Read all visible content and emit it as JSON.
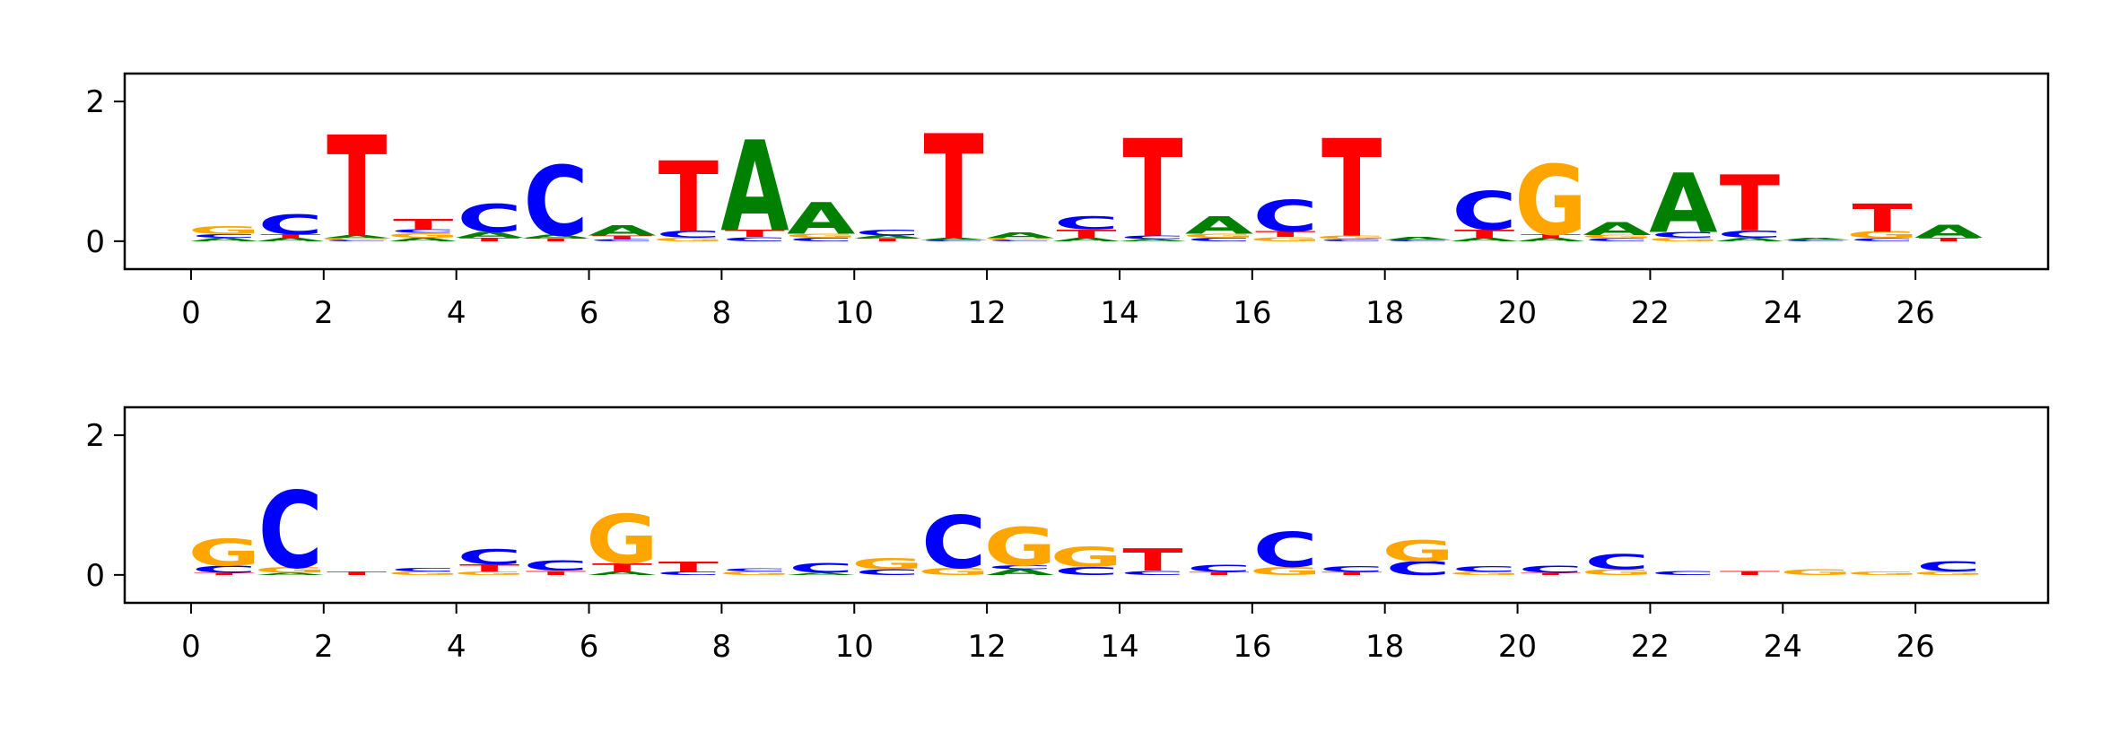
{
  "colors": {
    "A": "#008000",
    "C": "#0000ff",
    "G": "#ffa500",
    "T": "#ff0000",
    "axis": "#000000"
  },
  "chart_data": [
    {
      "type": "sequence-logo",
      "title": "",
      "xlabel": "",
      "ylabel": "",
      "xlim": [
        -1,
        28
      ],
      "ylim": [
        -0.4,
        2.4
      ],
      "xticks": [
        "0",
        "2",
        "4",
        "6",
        "8",
        "10",
        "12",
        "14",
        "16",
        "18",
        "20",
        "22",
        "24",
        "26"
      ],
      "yticks": [
        "0",
        "2"
      ],
      "positions": [
        {
          "x": 0,
          "letters": [
            [
              "A",
              0.05
            ],
            [
              "C",
              0.05
            ],
            [
              "G",
              0.12
            ]
          ]
        },
        {
          "x": 1,
          "letters": [
            [
              "A",
              0.05
            ],
            [
              "T",
              0.05
            ],
            [
              "C",
              0.28
            ]
          ]
        },
        {
          "x": 2,
          "letters": [
            [
              "C",
              0.02
            ],
            [
              "G",
              0.02
            ],
            [
              "A",
              0.04
            ],
            [
              "T",
              1.45
            ]
          ]
        },
        {
          "x": 3,
          "letters": [
            [
              "A",
              0.05
            ],
            [
              "G",
              0.07
            ],
            [
              "C",
              0.05
            ],
            [
              "T",
              0.15
            ]
          ]
        },
        {
          "x": 4,
          "letters": [
            [
              "T",
              0.05
            ],
            [
              "A",
              0.08
            ],
            [
              "C",
              0.4
            ]
          ]
        },
        {
          "x": 5,
          "letters": [
            [
              "T",
              0.04
            ],
            [
              "A",
              0.05
            ],
            [
              "C",
              1.0
            ]
          ]
        },
        {
          "x": 6,
          "letters": [
            [
              "C",
              0.03
            ],
            [
              "T",
              0.05
            ],
            [
              "A",
              0.15
            ]
          ]
        },
        {
          "x": 7,
          "letters": [
            [
              "G",
              0.05
            ],
            [
              "C",
              0.1
            ],
            [
              "T",
              1.0
            ]
          ]
        },
        {
          "x": 8,
          "letters": [
            [
              "C",
              0.06
            ],
            [
              "T",
              0.1
            ],
            [
              "A",
              1.3
            ]
          ]
        },
        {
          "x": 9,
          "letters": [
            [
              "C",
              0.05
            ],
            [
              "G",
              0.06
            ],
            [
              "A",
              0.45
            ]
          ]
        },
        {
          "x": 10,
          "letters": [
            [
              "T",
              0.04
            ],
            [
              "A",
              0.04
            ],
            [
              "C",
              0.08
            ]
          ]
        },
        {
          "x": 11,
          "letters": [
            [
              "C",
              0.02
            ],
            [
              "A",
              0.03
            ],
            [
              "T",
              1.5
            ]
          ]
        },
        {
          "x": 12,
          "letters": [
            [
              "C",
              0.02
            ],
            [
              "G",
              0.02
            ],
            [
              "A",
              0.08
            ]
          ]
        },
        {
          "x": 13,
          "letters": [
            [
              "A",
              0.05
            ],
            [
              "T",
              0.12
            ],
            [
              "C",
              0.18
            ]
          ]
        },
        {
          "x": 14,
          "letters": [
            [
              "A",
              0.03
            ],
            [
              "C",
              0.05
            ],
            [
              "T",
              1.4
            ]
          ]
        },
        {
          "x": 15,
          "letters": [
            [
              "C",
              0.05
            ],
            [
              "G",
              0.06
            ],
            [
              "A",
              0.25
            ]
          ]
        },
        {
          "x": 16,
          "letters": [
            [
              "G",
              0.06
            ],
            [
              "T",
              0.08
            ],
            [
              "C",
              0.45
            ]
          ]
        },
        {
          "x": 17,
          "letters": [
            [
              "C",
              0.03
            ],
            [
              "G",
              0.05
            ],
            [
              "T",
              1.4
            ]
          ]
        },
        {
          "x": 18,
          "letters": [
            [
              "C",
              0.02
            ],
            [
              "A",
              0.04
            ]
          ]
        },
        {
          "x": 19,
          "letters": [
            [
              "A",
              0.05
            ],
            [
              "T",
              0.12
            ],
            [
              "C",
              0.55
            ]
          ]
        },
        {
          "x": 20,
          "letters": [
            [
              "A",
              0.05
            ],
            [
              "T",
              0.05
            ],
            [
              "G",
              1.0
            ]
          ]
        },
        {
          "x": 21,
          "letters": [
            [
              "C",
              0.04
            ],
            [
              "G",
              0.05
            ],
            [
              "A",
              0.18
            ]
          ]
        },
        {
          "x": 22,
          "letters": [
            [
              "G",
              0.05
            ],
            [
              "C",
              0.08
            ],
            [
              "A",
              0.85
            ]
          ]
        },
        {
          "x": 23,
          "letters": [
            [
              "A",
              0.05
            ],
            [
              "C",
              0.1
            ],
            [
              "T",
              0.8
            ]
          ]
        },
        {
          "x": 24,
          "letters": [
            [
              "C",
              0.02
            ],
            [
              "A",
              0.03
            ]
          ]
        },
        {
          "x": 25,
          "letters": [
            [
              "C",
              0.04
            ],
            [
              "G",
              0.1
            ],
            [
              "T",
              0.4
            ]
          ]
        },
        {
          "x": 26,
          "letters": [
            [
              "T",
              0.05
            ],
            [
              "A",
              0.18
            ]
          ]
        }
      ]
    },
    {
      "type": "sequence-logo",
      "title": "",
      "xlabel": "",
      "ylabel": "",
      "xlim": [
        -1,
        28
      ],
      "ylim": [
        -0.4,
        2.4
      ],
      "xticks": [
        "0",
        "2",
        "4",
        "6",
        "8",
        "10",
        "12",
        "14",
        "16",
        "18",
        "20",
        "22",
        "24",
        "26"
      ],
      "yticks": [
        "0",
        "2"
      ],
      "positions": [
        {
          "x": 0,
          "letters": [
            [
              "T",
              0.03
            ],
            [
              "C",
              0.1
            ],
            [
              "G",
              0.38
            ]
          ]
        },
        {
          "x": 1,
          "letters": [
            [
              "A",
              0.03
            ],
            [
              "G",
              0.08
            ],
            [
              "C",
              1.1
            ]
          ]
        },
        {
          "x": 2,
          "letters": [
            [
              "T",
              0.05
            ]
          ]
        },
        {
          "x": 3,
          "letters": [
            [
              "G",
              0.05
            ],
            [
              "C",
              0.05
            ]
          ]
        },
        {
          "x": 4,
          "letters": [
            [
              "G",
              0.05
            ],
            [
              "T",
              0.1
            ],
            [
              "C",
              0.22
            ]
          ]
        },
        {
          "x": 5,
          "letters": [
            [
              "T",
              0.06
            ],
            [
              "C",
              0.15
            ]
          ]
        },
        {
          "x": 6,
          "letters": [
            [
              "A",
              0.05
            ],
            [
              "T",
              0.12
            ],
            [
              "G",
              0.7
            ]
          ]
        },
        {
          "x": 7,
          "letters": [
            [
              "C",
              0.05
            ],
            [
              "T",
              0.14
            ]
          ]
        },
        {
          "x": 8,
          "letters": [
            [
              "G",
              0.05
            ],
            [
              "C",
              0.04
            ]
          ]
        },
        {
          "x": 9,
          "letters": [
            [
              "A",
              0.03
            ],
            [
              "C",
              0.14
            ]
          ]
        },
        {
          "x": 10,
          "letters": [
            [
              "C",
              0.08
            ],
            [
              "G",
              0.16
            ]
          ]
        },
        {
          "x": 11,
          "letters": [
            [
              "G",
              0.1
            ],
            [
              "C",
              0.75
            ]
          ]
        },
        {
          "x": 12,
          "letters": [
            [
              "A",
              0.08
            ],
            [
              "C",
              0.06
            ],
            [
              "G",
              0.55
            ]
          ]
        },
        {
          "x": 13,
          "letters": [
            [
              "C",
              0.12
            ],
            [
              "G",
              0.28
            ]
          ]
        },
        {
          "x": 14,
          "letters": [
            [
              "C",
              0.06
            ],
            [
              "T",
              0.32
            ]
          ]
        },
        {
          "x": 15,
          "letters": [
            [
              "T",
              0.04
            ],
            [
              "C",
              0.1
            ]
          ]
        },
        {
          "x": 16,
          "letters": [
            [
              "G",
              0.12
            ],
            [
              "C",
              0.5
            ]
          ]
        },
        {
          "x": 17,
          "letters": [
            [
              "T",
              0.04
            ],
            [
              "C",
              0.08
            ]
          ]
        },
        {
          "x": 18,
          "letters": [
            [
              "C",
              0.2
            ],
            [
              "G",
              0.3
            ]
          ]
        },
        {
          "x": 19,
          "letters": [
            [
              "G",
              0.04
            ],
            [
              "C",
              0.08
            ]
          ]
        },
        {
          "x": 20,
          "letters": [
            [
              "T",
              0.03
            ],
            [
              "C",
              0.1
            ]
          ]
        },
        {
          "x": 21,
          "letters": [
            [
              "G",
              0.08
            ],
            [
              "C",
              0.22
            ]
          ]
        },
        {
          "x": 22,
          "letters": [
            [
              "C",
              0.06
            ]
          ]
        },
        {
          "x": 23,
          "letters": [
            [
              "T",
              0.06
            ]
          ]
        },
        {
          "x": 24,
          "letters": [
            [
              "G",
              0.08
            ]
          ]
        },
        {
          "x": 25,
          "letters": [
            [
              "G",
              0.05
            ]
          ]
        },
        {
          "x": 26,
          "letters": [
            [
              "G",
              0.05
            ],
            [
              "C",
              0.15
            ]
          ]
        }
      ]
    }
  ]
}
